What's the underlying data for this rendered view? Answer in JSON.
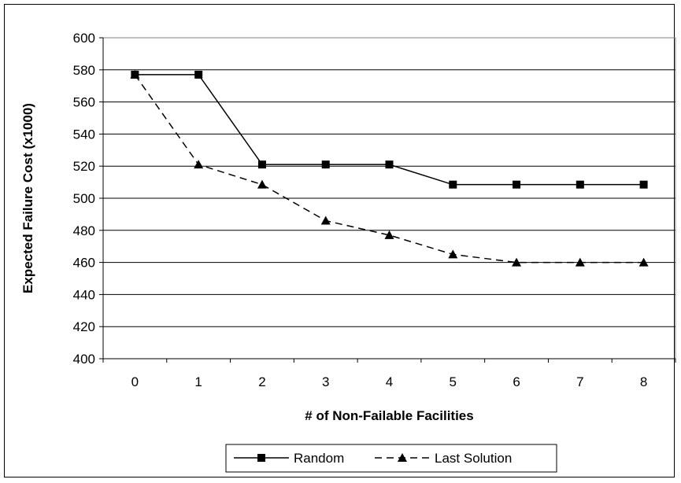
{
  "chart_data": {
    "type": "line",
    "xlabel": "# of Non-Failable Facilities",
    "ylabel": "Expected Failure Cost (x1000)",
    "ylim": [
      400,
      600
    ],
    "yticks": [
      400,
      420,
      440,
      460,
      480,
      500,
      520,
      540,
      560,
      580,
      600
    ],
    "x": [
      0,
      1,
      2,
      3,
      4,
      5,
      6,
      7,
      8
    ],
    "grid": "horizontal",
    "legend_position": "bottom",
    "series": [
      {
        "name": "Random",
        "style": "solid",
        "marker": "square",
        "color": "#000000",
        "values": [
          577,
          577,
          521,
          521,
          521,
          508.5,
          508.5,
          508.5,
          508.5
        ]
      },
      {
        "name": "Last Solution",
        "style": "dashed",
        "marker": "triangle",
        "color": "#000000",
        "values": [
          577,
          521,
          508.5,
          486,
          477,
          465,
          460,
          460,
          460
        ]
      }
    ]
  }
}
